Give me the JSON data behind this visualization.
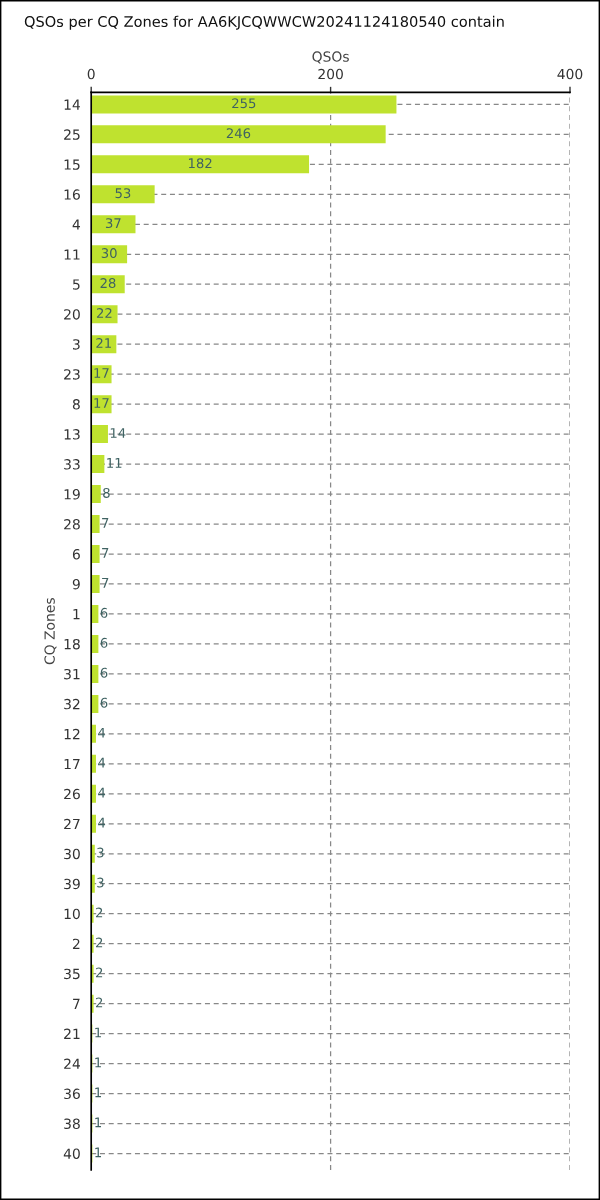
{
  "chart_data": {
    "type": "bar",
    "orientation": "horizontal",
    "title": "QSOs per CQ Zones for AA6KJCQWWCW20241124180540 contain",
    "xlabel": "QSOs",
    "ylabel": "CQ Zones",
    "categories": [
      "14",
      "25",
      "15",
      "16",
      "4",
      "11",
      "5",
      "20",
      "3",
      "23",
      "8",
      "13",
      "33",
      "19",
      "28",
      "6",
      "9",
      "1",
      "18",
      "31",
      "32",
      "12",
      "17",
      "26",
      "27",
      "30",
      "39",
      "10",
      "2",
      "35",
      "7",
      "21",
      "24",
      "36",
      "38",
      "40"
    ],
    "values": [
      255,
      246,
      182,
      53,
      37,
      30,
      28,
      22,
      21,
      17,
      17,
      14,
      11,
      8,
      7,
      7,
      7,
      6,
      6,
      6,
      6,
      4,
      4,
      4,
      4,
      3,
      3,
      2,
      2,
      2,
      2,
      1,
      1,
      1,
      1,
      1
    ],
    "color": "#bfe22f",
    "xlim": [
      0,
      400
    ],
    "xticks": [
      0,
      200,
      400
    ],
    "grid": true,
    "data_labels": true
  }
}
